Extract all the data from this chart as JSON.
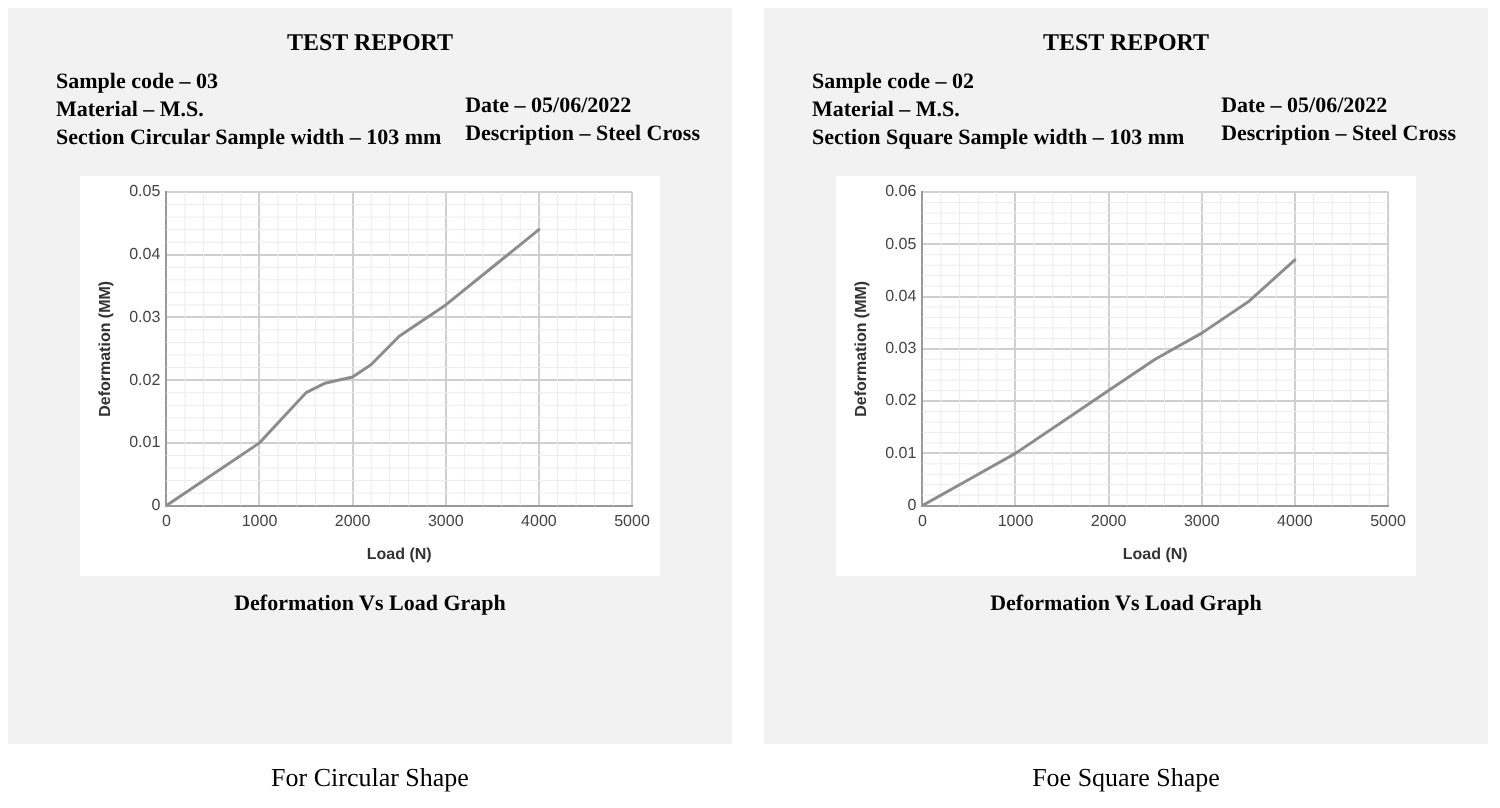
{
  "chart_data": [
    {
      "type": "line",
      "title": "TEST REPORT",
      "xlabel": "Load (N)",
      "ylabel": "Deformation (MM)",
      "annotations": [
        "Sample code – 03",
        "Material – M.S.",
        "Section Circular Sample width – 103 mm",
        "Date – 05/06/2022",
        "Description – Steel Cross",
        "Deformation Vs Load Graph",
        "For Circular Shape"
      ],
      "series": [
        {
          "color": "#8c8c8c",
          "x": [
            0,
            500,
            1000,
            1250,
            1500,
            1700,
            2000,
            2200,
            2500,
            3000,
            3500,
            4000
          ],
          "values": [
            0,
            0.005,
            0.01,
            0.014,
            0.018,
            0.0195,
            0.0205,
            0.0225,
            0.027,
            0.032,
            0.038,
            0.044
          ]
        }
      ],
      "xlim": [
        0,
        5000
      ],
      "xticks": [
        0,
        1000,
        2000,
        3000,
        4000,
        5000
      ],
      "ylim": [
        0,
        0.05
      ],
      "yticks": [
        0,
        0.01,
        0.02,
        0.03,
        0.04,
        0.05
      ],
      "grid": true,
      "legend": false,
      "marker": "none",
      "line_style": "solid"
    },
    {
      "type": "line",
      "title": "TEST REPORT",
      "xlabel": "Load (N)",
      "ylabel": "Deformation (MM)",
      "annotations": [
        "Sample code – 02",
        "Material – M.S.",
        "Section Square Sample width – 103 mm",
        "Date – 05/06/2022",
        "Description – Steel Cross",
        "Deformation Vs Load Graph",
        "Foe Square Shape"
      ],
      "series": [
        {
          "color": "#8c8c8c",
          "x": [
            0,
            500,
            1000,
            1500,
            2000,
            2500,
            3000,
            3500,
            4000
          ],
          "values": [
            0,
            0.005,
            0.01,
            0.016,
            0.022,
            0.028,
            0.033,
            0.039,
            0.047
          ]
        }
      ],
      "xlim": [
        0,
        5000
      ],
      "xticks": [
        0,
        1000,
        2000,
        3000,
        4000,
        5000
      ],
      "ylim": [
        0,
        0.06
      ],
      "yticks": [
        0,
        0.01,
        0.02,
        0.03,
        0.04,
        0.05,
        0.06
      ],
      "grid": true,
      "legend": false,
      "marker": "none",
      "line_style": "solid"
    }
  ]
}
